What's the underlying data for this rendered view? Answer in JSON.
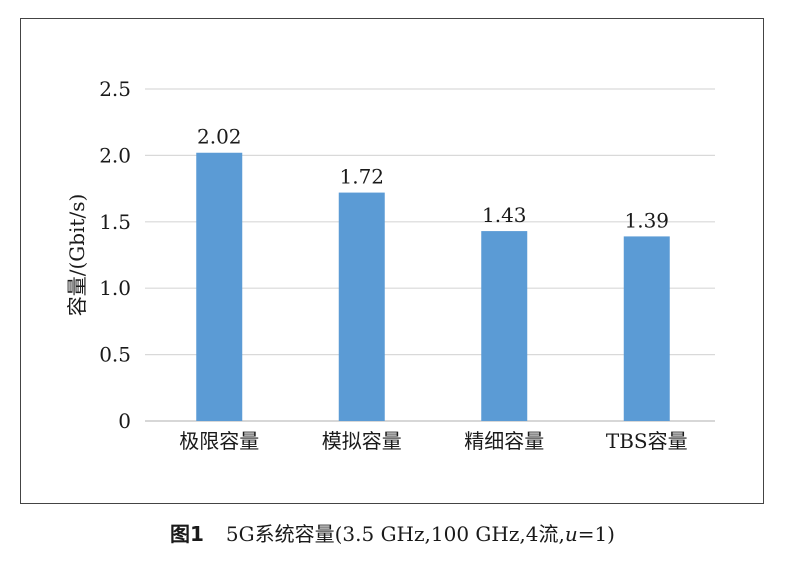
{
  "chart_data": {
    "type": "bar",
    "title": "",
    "xlabel": "",
    "ylabel": "容量/(Gbit/s)",
    "categories": [
      "极限容量",
      "模拟容量",
      "精细容量",
      "TBS容量"
    ],
    "values": [
      2.02,
      1.72,
      1.43,
      1.39
    ],
    "value_labels": [
      "2.02",
      "1.72",
      "1.43",
      "1.39"
    ],
    "ylim": [
      0,
      2.5
    ],
    "yticks": [
      0,
      0.5,
      1.0,
      1.5,
      2.0,
      2.5
    ],
    "ytick_labels": [
      "0",
      "0.5",
      "1.0",
      "1.5",
      "2.0",
      "2.5"
    ],
    "grid": true,
    "bar_color": "#5b9bd5",
    "grid_color": "#d9d9d9"
  },
  "caption": {
    "fig_label": "图1",
    "text_before_u": "5G系统容量(3.5 GHz,100 GHz,4流,",
    "u": "u",
    "text_after_u": "=1)"
  }
}
